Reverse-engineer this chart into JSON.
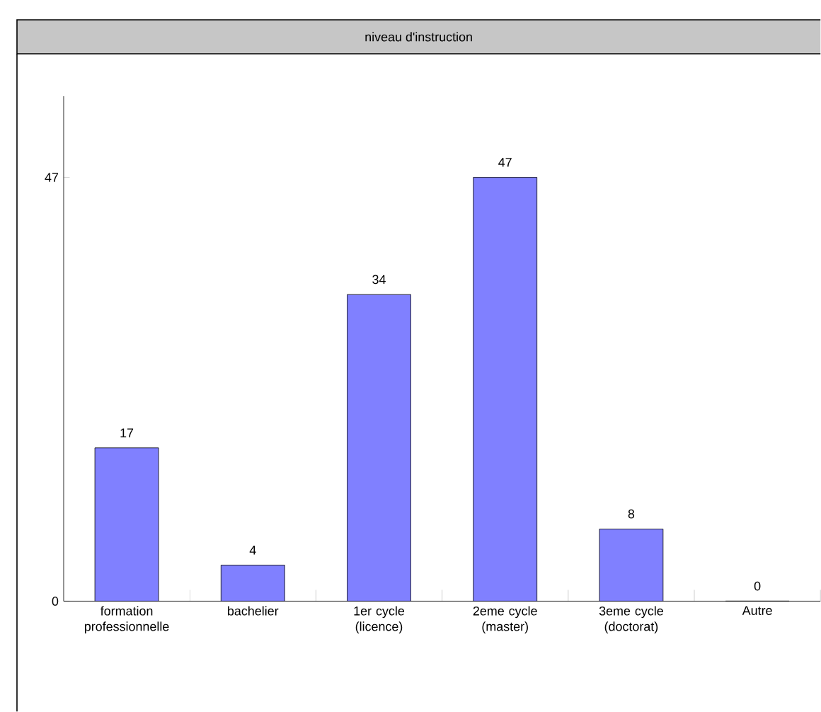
{
  "chart_data": {
    "type": "bar",
    "title": "niveau d'instruction",
    "categories": [
      "formation professionnelle",
      "bachelier",
      "1er cycle (licence)",
      "2eme cycle (master)",
      "3eme cycle (doctorat)",
      "Autre"
    ],
    "values": [
      17,
      4,
      34,
      47,
      8,
      0
    ],
    "color": "#8080ff",
    "ylim": [
      0,
      56
    ],
    "yticks": [
      0,
      47
    ],
    "data_labels": true
  }
}
